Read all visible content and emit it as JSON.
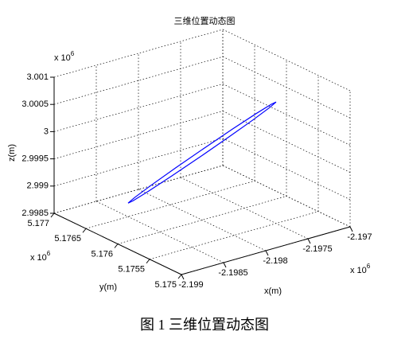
{
  "chart_data": {
    "type": "line3d",
    "title": "三维位置动态图",
    "xlabel": "x(m)",
    "ylabel": "y(m)",
    "zlabel": "z(m)",
    "x_scale_label": {
      "text": "x 10",
      "power": "6"
    },
    "y_scale_label": {
      "text": "x 10",
      "power": "6"
    },
    "z_scale_label": {
      "text": "x 10",
      "power": "6"
    },
    "xlim": [
      -2.199,
      -2.197
    ],
    "xticks": [
      -2.199,
      -2.1985,
      -2.198,
      -2.1975,
      -2.197
    ],
    "ylim": [
      5.175,
      5.177
    ],
    "yticks": [
      5.175,
      5.1755,
      5.176,
      5.1765,
      5.177
    ],
    "zlim": [
      2.9985,
      3.001
    ],
    "zticks": [
      2.9985,
      2.999,
      2.9995,
      3,
      3.0005,
      3.001
    ],
    "grid": true,
    "series": [
      {
        "color": "#0000ff",
        "x": [
          -2.1975,
          -2.1975,
          -2.197576,
          -2.197716,
          -2.1979,
          -2.198099,
          -2.198283,
          -2.198424,
          -2.1985,
          -2.1985,
          -2.198424,
          -2.198284,
          -2.1981,
          -2.197901,
          -2.197717,
          -2.197576,
          -2.1975
        ],
        "y": [
          5.1755,
          5.175576,
          5.175717,
          5.175901,
          5.1761,
          5.176284,
          5.176424,
          5.1765,
          5.1765,
          5.176424,
          5.176283,
          5.176099,
          5.1759,
          5.175716,
          5.175576,
          5.1755,
          5.1755
        ],
        "z": [
          3.00073,
          3.000647,
          3.000426,
          3.000101,
          2.99972,
          2.999343,
          2.999026,
          2.998817,
          2.99875,
          2.998833,
          2.999054,
          2.99938,
          2.99976,
          3.000138,
          3.000454,
          3.000663,
          3.00073
        ]
      }
    ]
  },
  "caption": "图 1  三维位置动态图"
}
